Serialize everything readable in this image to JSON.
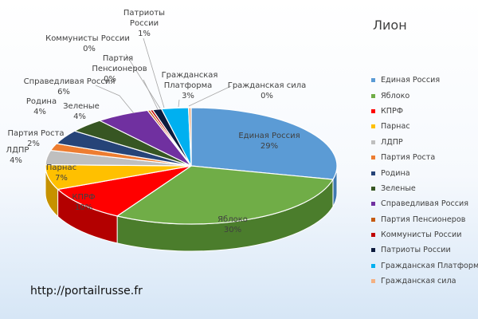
{
  "chart_data": {
    "type": "pie",
    "title": "Лион",
    "slices": [
      {
        "label": "Единая Россия",
        "pct_label": "29%",
        "value": 29,
        "color": "#5b9bd5",
        "dark": "#3f78b0"
      },
      {
        "label": "Яблоко",
        "pct_label": "30%",
        "value": 30,
        "color": "#70ad47",
        "dark": "#4b7d2c"
      },
      {
        "label": "КПРФ",
        "pct_label": "10%",
        "value": 10,
        "color": "#ff0000",
        "dark": "#b30000"
      },
      {
        "label": "Парнас",
        "pct_label": "7%",
        "value": 7,
        "color": "#ffc000",
        "dark": "#c69200"
      },
      {
        "label": "ЛДПР",
        "pct_label": "4%",
        "value": 4,
        "color": "#bfbfbf",
        "dark": "#8f8f8f"
      },
      {
        "label": "Партия Роста",
        "pct_label": "2%",
        "value": 2,
        "color": "#ed7d31",
        "dark": "#b0561c"
      },
      {
        "label": "Родина",
        "pct_label": "4%",
        "value": 4,
        "color": "#264478",
        "dark": "#152a4f"
      },
      {
        "label": "Зеленые",
        "pct_label": "4%",
        "value": 4,
        "color": "#375623",
        "dark": "#1f3313"
      },
      {
        "label": "Справедливая Россия",
        "pct_label": "6%",
        "value": 6,
        "color": "#7030a0",
        "dark": "#4c1d70"
      },
      {
        "label": "Партия Пенсионеров",
        "pct_label": "0%",
        "value": 0.3,
        "color": "#c55a11",
        "dark": "#8a3e09"
      },
      {
        "label": "Коммунисты России",
        "pct_label": "0%",
        "value": 0.3,
        "color": "#c00000",
        "dark": "#860000"
      },
      {
        "label": "Патриоты России",
        "pct_label": "1%",
        "value": 1,
        "color": "#0d1b3e",
        "dark": "#050c1e"
      },
      {
        "label": "Гражданская Платформа",
        "pct_label": "3%",
        "value": 3,
        "color": "#00b0f0",
        "dark": "#0080b0"
      },
      {
        "label": "Гражданская сила",
        "pct_label": "0%",
        "value": 0.3,
        "color": "#f4b183",
        "dark": "#c78457"
      }
    ]
  },
  "labels": {
    "edinaya_name": "Единая Россия",
    "edinaya_pct": "29%",
    "yabloko_name": "Яблоко",
    "yabloko_pct": "30%",
    "kprf_name": "КПРФ",
    "kprf_pct": "10%",
    "parnas_name": "Парнас",
    "parnas_pct": "7%",
    "ldpr_name": "ЛДПР",
    "ldpr_pct": "4%",
    "rosta_name": "Партия Роста",
    "rosta_pct": "2%",
    "rodina_name": "Родина",
    "rodina_pct": "4%",
    "zelenye_name": "Зеленые",
    "zelenye_pct": "4%",
    "spravedl_name": "Справедливая Россия",
    "spravedl_pct": "6%",
    "pensioner_line1": "Партия",
    "pensioner_line2": "Пенсионеров",
    "pensioner_pct": "0%",
    "kommunisty_name": "Коммунисты России",
    "kommunisty_pct": "0%",
    "patrioty_line1": "Патриоты",
    "patrioty_line2": "России",
    "patrioty_pct": "1%",
    "platforma_line1": "Гражданская",
    "platforma_line2": "Платформа",
    "platforma_pct": "3%",
    "sila_name": "Гражданская сила",
    "sila_pct": "0%"
  },
  "footer": {
    "url": "http://portailrusse.fr"
  }
}
